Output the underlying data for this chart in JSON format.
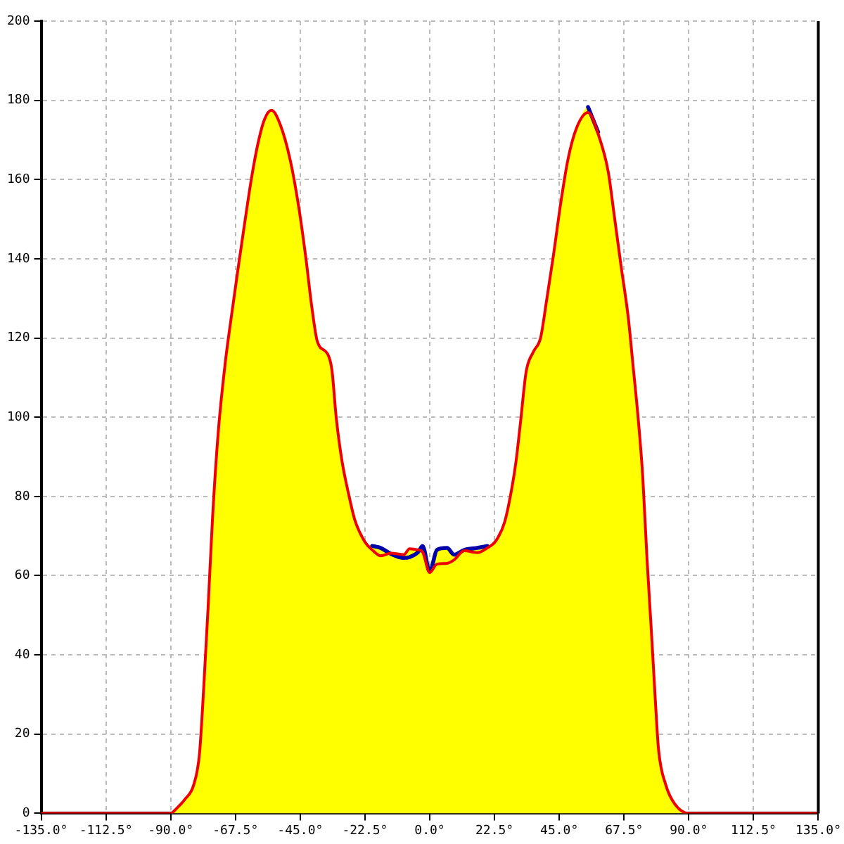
{
  "chart_data": {
    "type": "line",
    "x": [
      -135,
      -90,
      -88,
      -85,
      -82,
      -80,
      -78.5,
      -77,
      -75.5,
      -73.5,
      -71,
      -69,
      -66.5,
      -64.5,
      -62,
      -60,
      -57.5,
      -55,
      -52,
      -48.5,
      -45.5,
      -43,
      -41,
      -39,
      -35.5,
      -34,
      -32.5,
      -30.5,
      -28,
      -26,
      -22.5,
      -20,
      -17,
      -13.5,
      -9,
      -7,
      -4,
      -2.5,
      0,
      2.5,
      6,
      8.5,
      12,
      16.5,
      20,
      23,
      26,
      28.5,
      30,
      31.5,
      33.5,
      36,
      38.5,
      40.5,
      43,
      45.5,
      48,
      51,
      55,
      58.5,
      62,
      64,
      66.5,
      69,
      70.5,
      72.5,
      74,
      75.5,
      77,
      78.5,
      79.5,
      82,
      85,
      90,
      135
    ],
    "series": [
      {
        "color": "#ee0000",
        "values": [
          0,
          0,
          1.2,
          3.6,
          7.2,
          15,
          32,
          52,
          74,
          96,
          114,
          125,
          138,
          148,
          160,
          168,
          175,
          177.5,
          174,
          165,
          153,
          140,
          128,
          119,
          116,
          112,
          100,
          89,
          80,
          74,
          68.5,
          66.5,
          65,
          65.7,
          65.3,
          66.8,
          66.5,
          66,
          60.8,
          62.9,
          63.1,
          64,
          66.3,
          65.8,
          67,
          68.8,
          73.5,
          82,
          89,
          98.5,
          111.5,
          116.5,
          120,
          129,
          141,
          154,
          165,
          173,
          176.9,
          171.5,
          162,
          151.5,
          138,
          125,
          114,
          99,
          85,
          64,
          46,
          27,
          16,
          7.2,
          2.5,
          0,
          0
        ]
      },
      {
        "color": "#0000aa",
        "values": [
          null,
          null,
          null,
          null,
          null,
          null,
          null,
          null,
          null,
          null,
          null,
          null,
          null,
          null,
          null,
          null,
          null,
          null,
          null,
          null,
          null,
          null,
          null,
          null,
          null,
          null,
          null,
          null,
          null,
          null,
          null,
          67.5,
          67,
          65.5,
          64.5,
          64.7,
          66,
          67.5,
          61,
          66.5,
          67,
          65.3,
          66.5,
          67,
          67.5,
          null,
          null,
          null,
          null,
          null,
          null,
          null,
          null,
          null,
          null,
          null,
          null,
          null,
          178.3,
          172,
          null,
          null,
          null,
          null,
          null,
          null,
          null,
          null,
          null,
          null,
          null,
          null,
          null,
          null,
          null
        ]
      },
      {
        "type": "area",
        "color": "#ffff00",
        "values": [
          0,
          0,
          1.2,
          3.6,
          7.2,
          15,
          32,
          52,
          74,
          96,
          114,
          125,
          138,
          148,
          160,
          168,
          175,
          177.5,
          174,
          165,
          153,
          140,
          128,
          119,
          116,
          112,
          100,
          89,
          80,
          74,
          68.5,
          67.5,
          67,
          65.7,
          65.3,
          66.8,
          66.5,
          67.5,
          61,
          66.5,
          67,
          65.3,
          66.5,
          67,
          67.5,
          69,
          73.5,
          82,
          89,
          98.5,
          111.5,
          116.5,
          120,
          129,
          141,
          154,
          165,
          173,
          178.3,
          172,
          162,
          151.5,
          138,
          125,
          114,
          99,
          85,
          64,
          46,
          27,
          16,
          7.2,
          2.5,
          0,
          0
        ]
      }
    ],
    "xlim": [
      -135,
      135
    ],
    "xticks": [
      {
        "value": -135,
        "label": "-135.0°"
      },
      {
        "value": -112.5,
        "label": "-112.5°"
      },
      {
        "value": -90,
        "label": "-90.0°"
      },
      {
        "value": -67.5,
        "label": "-67.5°"
      },
      {
        "value": -45,
        "label": "-45.0°"
      },
      {
        "value": -22.5,
        "label": "-22.5°"
      },
      {
        "value": 0,
        "label": "0.0°"
      },
      {
        "value": 22.5,
        "label": "22.5°"
      },
      {
        "value": 45,
        "label": "45.0°"
      },
      {
        "value": 67.5,
        "label": "67.5°"
      },
      {
        "value": 90,
        "label": "90.0°"
      },
      {
        "value": 112.5,
        "label": "112.5°"
      },
      {
        "value": 135,
        "label": "135.0°"
      }
    ],
    "ylim": [
      0,
      200
    ],
    "yticks": [
      0,
      20,
      40,
      60,
      80,
      100,
      120,
      140,
      160,
      180,
      200
    ],
    "grid": true,
    "marker": "none"
  }
}
